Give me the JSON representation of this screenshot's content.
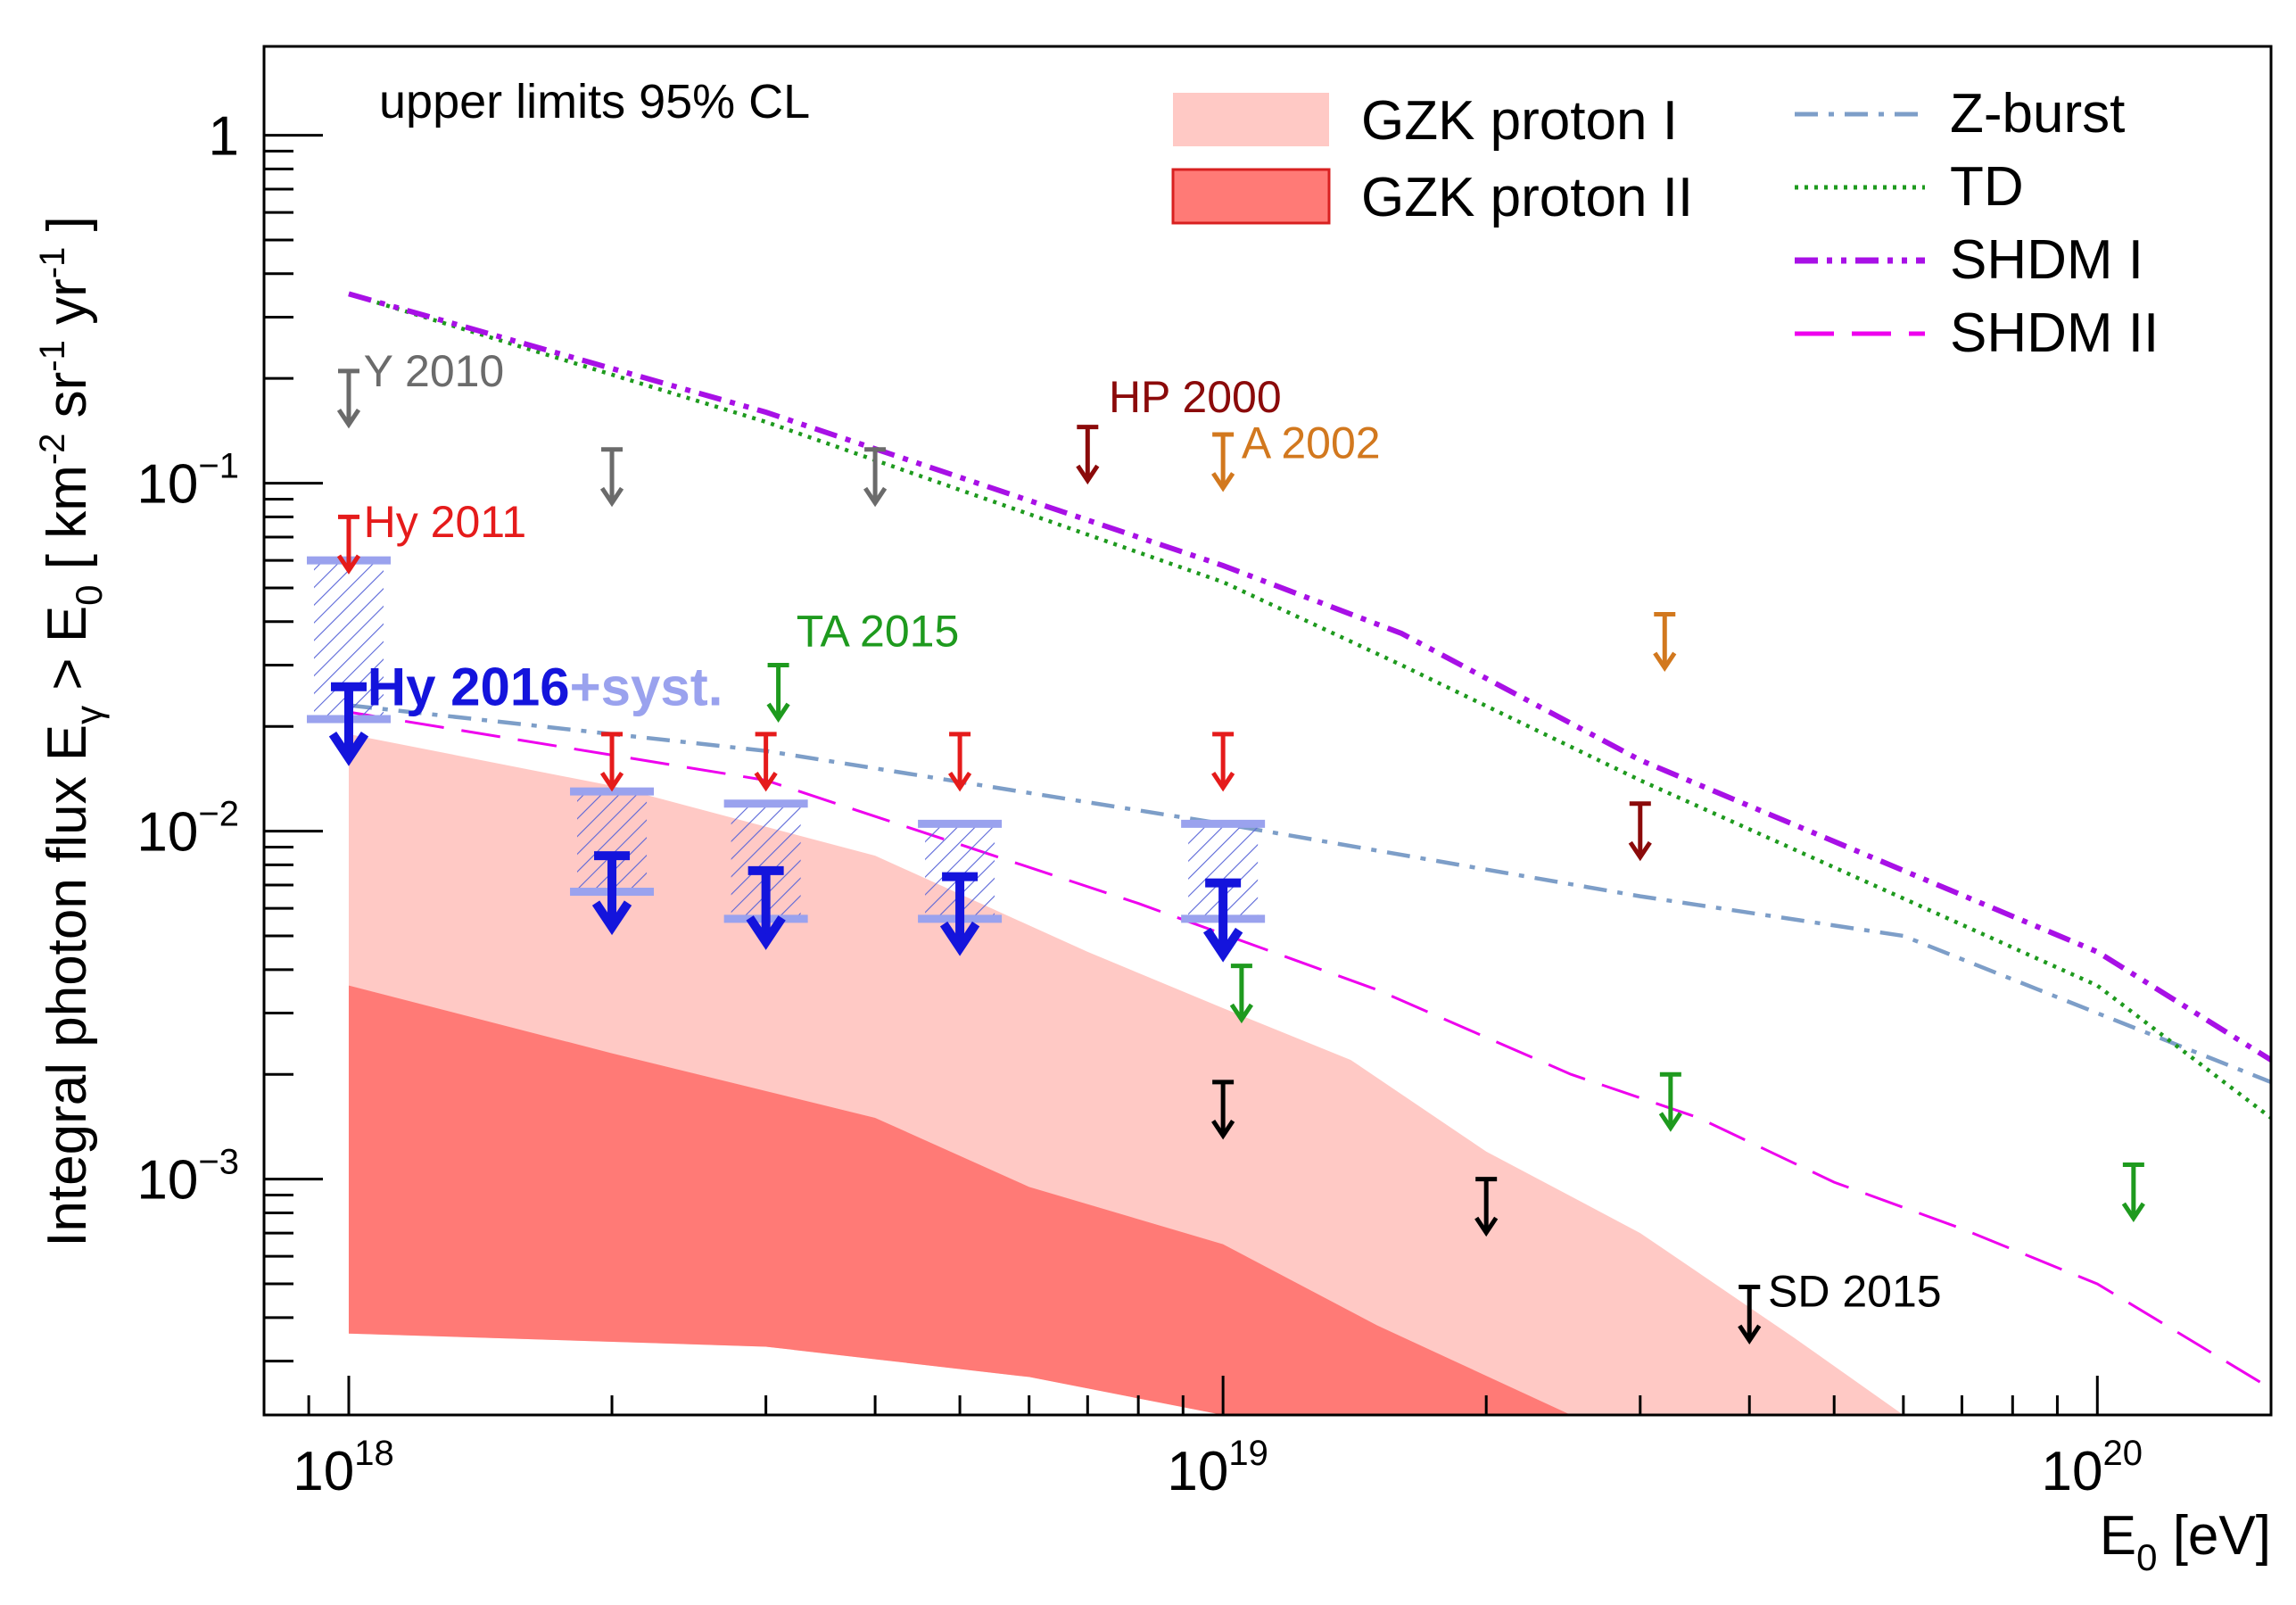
{
  "chart_data": {
    "type": "line",
    "note": "upper limits 95% CL",
    "xlabel": "E",
    "xlabel_sub": "0",
    "xlabel_unit": " [eV]",
    "ylabel": {
      "main": "Integral photon flux E",
      "sub_gamma": "γ",
      "gt": " > E",
      "sub_0": "0",
      "unit": " [ km",
      "exp1": "-2",
      "sr": " sr",
      "exp2": "-1",
      "yr": " yr",
      "exp3": "-1",
      "close": " ]"
    },
    "x_axis": {
      "scale": "log",
      "range": [
        8e+17,
        1.58e+20
      ],
      "major_ticks": [
        1e+18,
        1e+19,
        1e+20
      ],
      "tick_base": "10",
      "tick_exponents": [
        "18",
        "19",
        "20"
      ]
    },
    "y_axis": {
      "scale": "log",
      "range": [
        0.00021,
        1.8
      ],
      "major_ticks": [
        1,
        0.1,
        0.01,
        0.001
      ],
      "tick_labels": [
        "1",
        "10",
        "10",
        "10"
      ],
      "tick_exponents": [
        "",
        "−1",
        "−2",
        "−3"
      ]
    },
    "legend": [
      {
        "label": "GZK proton I",
        "kind": "box",
        "color": "#ffc9c5"
      },
      {
        "label": "GZK proton II",
        "kind": "box",
        "color": "#ff7a76"
      },
      {
        "label": "Z-burst",
        "kind": "line",
        "color": "#7d9ec8",
        "dash": "dashdot"
      },
      {
        "label": "TD",
        "kind": "line",
        "color": "#1e9a1e",
        "dash": "dotted"
      },
      {
        "label": "SHDM I",
        "kind": "line",
        "color": "#a810e6",
        "dash": "dashdotdot"
      },
      {
        "label": "SHDM II",
        "kind": "line",
        "color": "#ee00ee",
        "dash": "longdash"
      }
    ],
    "bands": [
      {
        "name": "GZK proton I",
        "color": "#ffc9c5",
        "upper": [
          [
            1e+18,
            0.019
          ],
          [
            2e+18,
            0.0135
          ],
          [
            4e+18,
            0.0085
          ],
          [
            7e+18,
            0.0045
          ],
          [
            1e+19,
            0.0031
          ],
          [
            1.4e+19,
            0.0022
          ],
          [
            2e+19,
            0.0012
          ],
          [
            3e+19,
            0.0007
          ],
          [
            4.5e+19,
            0.00035
          ],
          [
            6e+19,
            0.00021
          ]
        ],
        "lower": [
          [
            1e+18,
            0.00036
          ],
          [
            3e+18,
            0.00033
          ],
          [
            6e+18,
            0.00027
          ],
          [
            1e+19,
            0.00021
          ]
        ]
      },
      {
        "name": "GZK proton II",
        "color": "#ff7a76",
        "upper": [
          [
            1e+18,
            0.0036
          ],
          [
            2e+18,
            0.0023
          ],
          [
            4e+18,
            0.0015
          ],
          [
            6e+18,
            0.00095
          ],
          [
            1e+19,
            0.00065
          ],
          [
            1.5e+19,
            0.00038
          ],
          [
            2.5e+19,
            0.00021
          ]
        ],
        "lower": [
          [
            1e+18,
            0.00036
          ],
          [
            3e+18,
            0.00033
          ],
          [
            6e+18,
            0.00027
          ],
          [
            1e+19,
            0.00021
          ]
        ]
      }
    ],
    "series": [
      {
        "name": "Z-burst",
        "color": "#7d9ec8",
        "dash": "dashdot",
        "points": [
          [
            1e+18,
            0.023
          ],
          [
            3e+18,
            0.017
          ],
          [
            1e+19,
            0.0105
          ],
          [
            3e+19,
            0.0065
          ],
          [
            6e+19,
            0.005
          ],
          [
            1e+20,
            0.003
          ],
          [
            1.58e+20,
            0.0019
          ]
        ]
      },
      {
        "name": "TD",
        "color": "#1e9a1e",
        "dash": "dotted",
        "points": [
          [
            1e+18,
            0.35
          ],
          [
            3e+18,
            0.15
          ],
          [
            1e+19,
            0.052
          ],
          [
            1.6e+19,
            0.03
          ],
          [
            3e+19,
            0.014
          ],
          [
            1e+20,
            0.0036
          ],
          [
            1.58e+20,
            0.0015
          ]
        ]
      },
      {
        "name": "SHDM I",
        "color": "#a810e6",
        "dash": "dashdotdot",
        "points": [
          [
            1e+18,
            0.35
          ],
          [
            3e+18,
            0.16
          ],
          [
            1e+19,
            0.058
          ],
          [
            1.6e+19,
            0.037
          ],
          [
            3e+19,
            0.016
          ],
          [
            1e+20,
            0.0045
          ],
          [
            1.58e+20,
            0.0022
          ]
        ]
      },
      {
        "name": "SHDM II",
        "color": "#ee00ee",
        "dash": "longdash",
        "points": [
          [
            1e+18,
            0.022
          ],
          [
            3e+18,
            0.014
          ],
          [
            8e+18,
            0.0062
          ],
          [
            1.5e+19,
            0.0035
          ],
          [
            2.5e+19,
            0.002
          ],
          [
            3.5e+19,
            0.0015
          ],
          [
            5e+19,
            0.00098
          ],
          [
            7e+19,
            0.00072
          ],
          [
            1e+20,
            0.0005
          ],
          [
            1.58e+20,
            0.00025
          ]
        ]
      }
    ],
    "limit_groups": [
      {
        "label": "Y 2010",
        "color": "#6b6b6b",
        "heavy": false,
        "label_at": [
          1.04e+18,
          0.19
        ],
        "points": [
          [
            1e+18,
            0.21
          ],
          [
            2e+18,
            0.125
          ],
          [
            4e+18,
            0.125
          ]
        ]
      },
      {
        "label": "Hy 2011",
        "color": "#e51b1b",
        "heavy": false,
        "label_at": [
          1.04e+18,
          0.07
        ],
        "points": [
          [
            1e+18,
            0.08
          ],
          [
            2e+18,
            0.019
          ],
          [
            3e+18,
            0.019
          ],
          [
            5e+18,
            0.019
          ],
          [
            1e+19,
            0.019
          ]
        ]
      },
      {
        "label": "HP 2000",
        "color": "#8b0a0a",
        "heavy": false,
        "label_at": [
          7.4e+18,
          0.16
        ],
        "points": [
          [
            7e+18,
            0.145
          ],
          [
            3e+19,
            0.012
          ]
        ]
      },
      {
        "label": "A 2002",
        "color": "#d2781e",
        "heavy": false,
        "label_at": [
          1.05e+19,
          0.118
        ],
        "points": [
          [
            1e+19,
            0.138
          ],
          [
            3.2e+19,
            0.042
          ]
        ]
      },
      {
        "label": "TA 2015",
        "color": "#1e9a1e",
        "heavy": false,
        "label_at": [
          3.25e+18,
          0.034
        ],
        "points": [
          [
            3.1e+18,
            0.03
          ],
          [
            1.05e+19,
            0.0041
          ],
          [
            3.25e+19,
            0.002
          ],
          [
            1.1e+20,
            0.0011
          ]
        ]
      },
      {
        "label": "SD 2015",
        "color": "#000000",
        "heavy": false,
        "label_at": [
          4.2e+19,
          0.00043
        ],
        "points": [
          [
            1e+19,
            0.0019
          ],
          [
            2e+19,
            0.001
          ],
          [
            4e+19,
            0.00049
          ]
        ]
      },
      {
        "label": "Hy 2016",
        "color": "#1414dc",
        "heavy": true,
        "label_at": [
          1.05e+18,
          0.023
        ],
        "points": [
          [
            1e+18,
            0.026
          ],
          [
            2e+18,
            0.0085
          ],
          [
            3e+18,
            0.0077
          ],
          [
            5e+18,
            0.0074
          ],
          [
            1e+19,
            0.0071
          ]
        ]
      }
    ],
    "syst_label": "+syst.",
    "syst_color": "#9aa2ee",
    "syst_boxes": [
      {
        "x": 1e+18,
        "lo": 0.021,
        "hi": 0.06
      },
      {
        "x": 2e+18,
        "lo": 0.0067,
        "hi": 0.013
      },
      {
        "x": 3e+18,
        "lo": 0.0056,
        "hi": 0.012
      },
      {
        "x": 5e+18,
        "lo": 0.0056,
        "hi": 0.0105
      },
      {
        "x": 1e+19,
        "lo": 0.0056,
        "hi": 0.0105
      }
    ]
  }
}
